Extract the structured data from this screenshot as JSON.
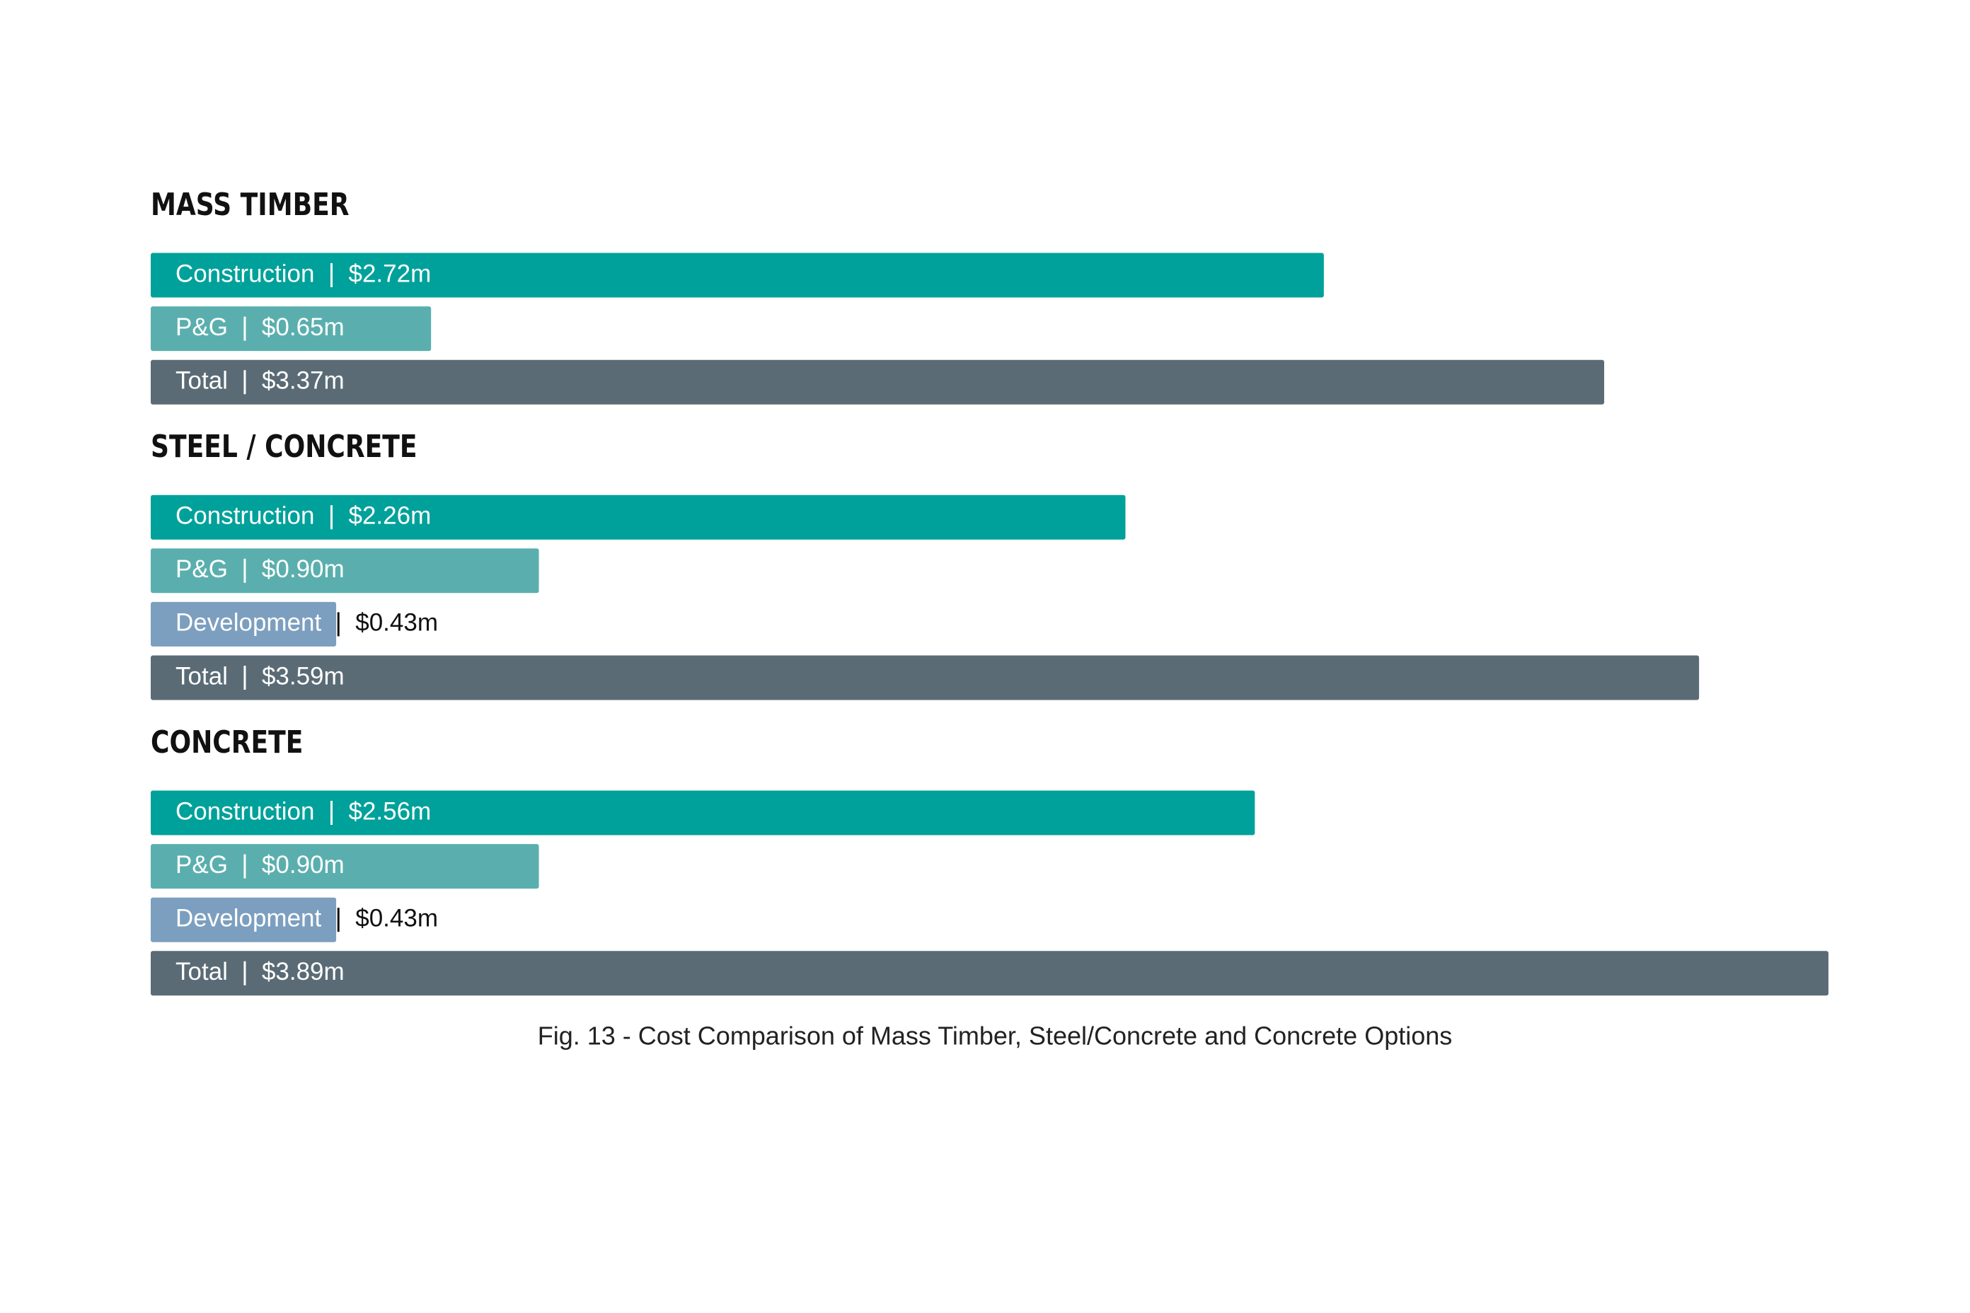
{
  "chart_data": {
    "type": "bar",
    "caption": "Fig. 13 - Cost Comparison of Mass Timber, Steel/Concrete and Concrete Options",
    "colors": {
      "Construction": "#00a19a",
      "P&G": "#5aafae",
      "Development": "#7c9fbf",
      "Total": "#5a6b75"
    },
    "groups": [
      {
        "name": "MASS TIMBER",
        "categories": [
          "Construction",
          "P&G",
          "Total"
        ],
        "values": [
          2.72,
          0.65,
          3.37
        ],
        "value_labels": [
          "$2.72m",
          "$0.65m",
          "$3.37m"
        ]
      },
      {
        "name": "STEEL / CONCRETE",
        "categories": [
          "Construction",
          "P&G",
          "Development",
          "Total"
        ],
        "values": [
          2.26,
          0.9,
          0.43,
          3.59
        ],
        "value_labels": [
          "$2.26m",
          "$0.90m",
          "$0.43m",
          "$3.59m"
        ]
      },
      {
        "name": "CONCRETE",
        "categories": [
          "Construction",
          "P&G",
          "Development",
          "Total"
        ],
        "values": [
          2.56,
          0.9,
          0.43,
          3.89
        ],
        "value_labels": [
          "$2.56m",
          "$0.90m",
          "$0.43m",
          "$3.89m"
        ]
      }
    ]
  }
}
